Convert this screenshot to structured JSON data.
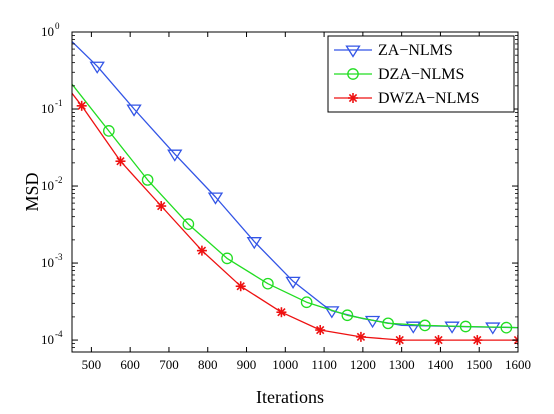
{
  "chart_data": {
    "type": "line",
    "title": "",
    "xlabel": "Iterations",
    "ylabel": "MSD",
    "xlim": [
      450,
      1600
    ],
    "ylim": [
      7e-05,
      1
    ],
    "y_scale": "log",
    "x_ticks": [
      500,
      600,
      700,
      800,
      900,
      1000,
      1100,
      1200,
      1300,
      1400,
      1500,
      1600
    ],
    "y_ticks": [
      {
        "value": 1,
        "mantissa": "10",
        "exp": "0"
      },
      {
        "value": 0.1,
        "mantissa": "10",
        "exp": "-1"
      },
      {
        "value": 0.01,
        "mantissa": "10",
        "exp": "-2"
      },
      {
        "value": 0.001,
        "mantissa": "10",
        "exp": "-3"
      },
      {
        "value": 0.0001,
        "mantissa": "10",
        "exp": "-4"
      }
    ],
    "grid": false,
    "legend_position": "top-right",
    "series": [
      {
        "name": "ZA−NLMS",
        "color": "#3355e6",
        "marker": "triangle-down",
        "line": [
          [
            450,
            0.75
          ],
          [
            515,
            0.36
          ],
          [
            610,
            0.1
          ],
          [
            715,
            0.026
          ],
          [
            820,
            0.0072
          ],
          [
            920,
            0.0019
          ],
          [
            1020,
            0.00058
          ],
          [
            1100,
            0.00028
          ],
          [
            1120,
            0.00024
          ],
          [
            1200,
            0.00019
          ],
          [
            1300,
            0.000155
          ],
          [
            1400,
            0.000152
          ],
          [
            1500,
            0.000148
          ],
          [
            1600,
            0.000145
          ]
        ],
        "markers": [
          [
            515,
            0.36
          ],
          [
            610,
            0.1
          ],
          [
            715,
            0.026
          ],
          [
            820,
            0.0072
          ],
          [
            920,
            0.0019
          ],
          [
            1020,
            0.00058
          ],
          [
            1120,
            0.00024
          ],
          [
            1225,
            0.00018
          ],
          [
            1330,
            0.000152
          ],
          [
            1430,
            0.000152
          ],
          [
            1535,
            0.000148
          ]
        ]
      },
      {
        "name": "DZA−NLMS",
        "color": "#22dd22",
        "marker": "circle",
        "line": [
          [
            450,
            0.21
          ],
          [
            545,
            0.052
          ],
          [
            645,
            0.012
          ],
          [
            750,
            0.0032
          ],
          [
            850,
            0.00115
          ],
          [
            955,
            0.00054
          ],
          [
            1055,
            0.00031
          ],
          [
            1160,
            0.00021
          ],
          [
            1265,
            0.000165
          ],
          [
            1360,
            0.000155
          ],
          [
            1465,
            0.00015
          ],
          [
            1600,
            0.000145
          ]
        ],
        "markers": [
          [
            545,
            0.052
          ],
          [
            645,
            0.012
          ],
          [
            750,
            0.0032
          ],
          [
            850,
            0.00115
          ],
          [
            955,
            0.00054
          ],
          [
            1055,
            0.00031
          ],
          [
            1160,
            0.00021
          ],
          [
            1265,
            0.000165
          ],
          [
            1360,
            0.000155
          ],
          [
            1465,
            0.00015
          ],
          [
            1570,
            0.000145
          ]
        ]
      },
      {
        "name": "DWZA−NLMS",
        "color": "#ee1111",
        "marker": "star",
        "line": [
          [
            450,
            0.16
          ],
          [
            475,
            0.11
          ],
          [
            575,
            0.021
          ],
          [
            680,
            0.0055
          ],
          [
            785,
            0.00145
          ],
          [
            885,
            0.0005
          ],
          [
            990,
            0.00023
          ],
          [
            1090,
            0.000135
          ],
          [
            1195,
            0.00011
          ],
          [
            1300,
            0.0001
          ],
          [
            1400,
            0.0001
          ],
          [
            1500,
            0.0001
          ],
          [
            1600,
            0.0001
          ]
        ],
        "markers": [
          [
            475,
            0.11
          ],
          [
            575,
            0.021
          ],
          [
            680,
            0.0055
          ],
          [
            785,
            0.00145
          ],
          [
            885,
            0.0005
          ],
          [
            990,
            0.00023
          ],
          [
            1090,
            0.000135
          ],
          [
            1195,
            0.00011
          ],
          [
            1295,
            0.0001
          ],
          [
            1395,
            0.0001
          ],
          [
            1495,
            0.0001
          ],
          [
            1600,
            0.0001
          ]
        ]
      }
    ]
  }
}
